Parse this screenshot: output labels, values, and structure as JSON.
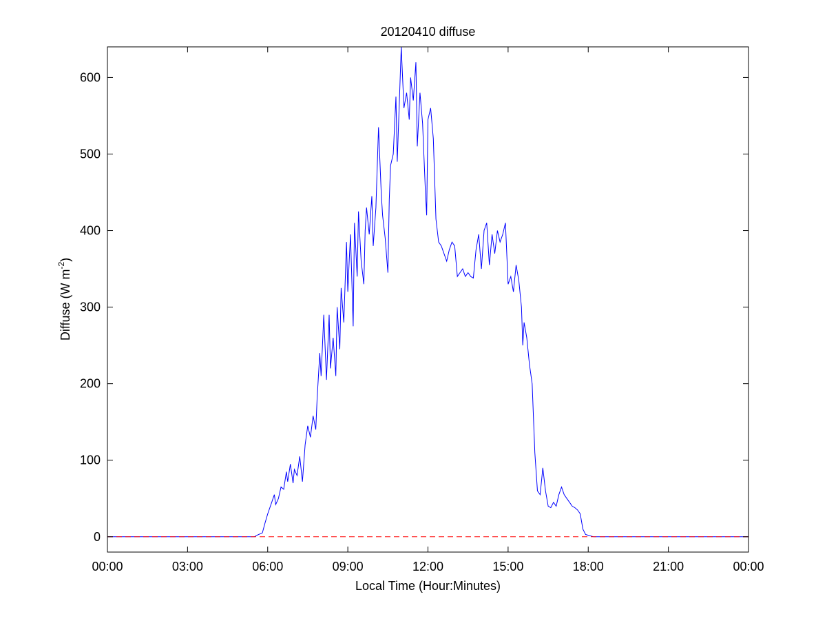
{
  "chart_data": {
    "type": "line",
    "title": "20120410 diffuse",
    "xlabel": "Local Time (Hour:Minutes)",
    "ylabel_main": "Diffuse (W m",
    "ylabel_sup": "-2",
    "ylabel_close": ")",
    "xlim": [
      0,
      24
    ],
    "ylim": [
      -20,
      640
    ],
    "x_ticks": [
      0,
      3,
      6,
      9,
      12,
      15,
      18,
      21,
      24
    ],
    "x_tick_labels": [
      "00:00",
      "03:00",
      "06:00",
      "09:00",
      "12:00",
      "15:00",
      "18:00",
      "21:00",
      "00:00"
    ],
    "y_ticks": [
      0,
      100,
      200,
      300,
      400,
      500,
      600
    ],
    "y_tick_labels": [
      "0",
      "100",
      "200",
      "300",
      "400",
      "500",
      "600"
    ],
    "grid": false,
    "series": [
      {
        "color": "#0000ff",
        "style": "solid",
        "x": [
          0,
          5.5,
          5.6,
          5.8,
          5.9,
          6.0,
          6.15,
          6.25,
          6.3,
          6.4,
          6.5,
          6.6,
          6.7,
          6.75,
          6.85,
          6.95,
          7.0,
          7.1,
          7.2,
          7.3,
          7.4,
          7.5,
          7.6,
          7.7,
          7.8,
          7.85,
          7.95,
          8.0,
          8.05,
          8.1,
          8.2,
          8.3,
          8.35,
          8.45,
          8.55,
          8.6,
          8.7,
          8.75,
          8.85,
          8.95,
          9.0,
          9.05,
          9.1,
          9.2,
          9.25,
          9.35,
          9.4,
          9.5,
          9.6,
          9.65,
          9.7,
          9.8,
          9.9,
          9.95,
          10.05,
          10.15,
          10.25,
          10.3,
          10.4,
          10.5,
          10.55,
          10.6,
          10.7,
          10.8,
          10.85,
          10.95,
          11.0,
          11.1,
          11.2,
          11.3,
          11.35,
          11.45,
          11.55,
          11.6,
          11.7,
          11.8,
          11.9,
          11.95,
          12.0,
          12.1,
          12.2,
          12.3,
          12.4,
          12.5,
          12.6,
          12.7,
          12.8,
          12.9,
          13.0,
          13.1,
          13.2,
          13.3,
          13.4,
          13.5,
          13.6,
          13.7,
          13.8,
          13.9,
          14.0,
          14.1,
          14.2,
          14.3,
          14.4,
          14.5,
          14.6,
          14.7,
          14.8,
          14.9,
          15.0,
          15.1,
          15.2,
          15.3,
          15.4,
          15.5,
          15.55,
          15.6,
          15.7,
          15.8,
          15.9,
          16.0,
          16.1,
          16.2,
          16.3,
          16.4,
          16.5,
          16.6,
          16.7,
          16.8,
          16.9,
          17.0,
          17.1,
          17.2,
          17.3,
          17.4,
          17.5,
          17.6,
          17.7,
          17.8,
          17.9,
          18.0,
          18.1,
          18.2,
          18.3,
          18.4,
          24
        ],
        "y": [
          0,
          0,
          2,
          5,
          18,
          30,
          45,
          55,
          42,
          50,
          65,
          62,
          85,
          72,
          95,
          70,
          88,
          80,
          105,
          72,
          120,
          145,
          130,
          158,
          140,
          180,
          240,
          210,
          250,
          290,
          205,
          290,
          220,
          260,
          210,
          300,
          245,
          325,
          280,
          385,
          320,
          360,
          395,
          275,
          410,
          340,
          425,
          360,
          330,
          400,
          430,
          395,
          445,
          380,
          430,
          535,
          450,
          420,
          390,
          345,
          440,
          485,
          500,
          575,
          490,
          590,
          640,
          560,
          580,
          545,
          600,
          570,
          620,
          510,
          580,
          540,
          455,
          420,
          545,
          560,
          520,
          415,
          385,
          380,
          370,
          360,
          375,
          385,
          380,
          340,
          345,
          350,
          340,
          345,
          340,
          338,
          375,
          395,
          350,
          400,
          410,
          355,
          395,
          370,
          400,
          385,
          395,
          410,
          330,
          340,
          320,
          355,
          335,
          300,
          250,
          280,
          260,
          225,
          200,
          110,
          60,
          55,
          90,
          60,
          40,
          38,
          45,
          40,
          55,
          65,
          55,
          50,
          45,
          40,
          38,
          35,
          30,
          10,
          3,
          2,
          1,
          0,
          0,
          0,
          0
        ]
      },
      {
        "color": "#ff0000",
        "style": "dashed",
        "x": [
          0,
          24
        ],
        "y": [
          0,
          0
        ]
      }
    ]
  }
}
